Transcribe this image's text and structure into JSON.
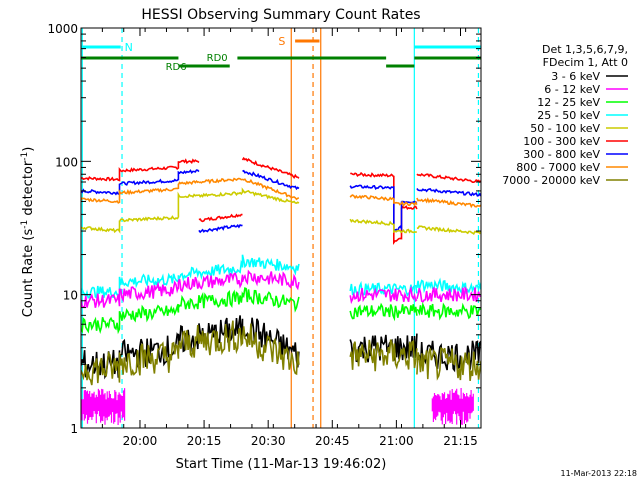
{
  "chart_data": {
    "type": "line",
    "title": "HESSI Observing Summary Count Rates",
    "xlabel": "Start Time (11-Mar-13 19:46:02)",
    "ylabel_main": "Count Rate (s",
    "ylabel_sup1": "-1",
    "ylabel_mid": " detector",
    "ylabel_sup2": "-1",
    "ylabel_end": ")",
    "timestamp": "11-Mar-2013 22:18",
    "yscale": "log",
    "ylim": [
      1,
      1000
    ],
    "xlim_minutes": [
      19.77,
      21.33
    ],
    "x_ticks": [
      {
        "label": "20:00",
        "v": 20.0
      },
      {
        "label": "20:15",
        "v": 20.25
      },
      {
        "label": "20:30",
        "v": 20.5
      },
      {
        "label": "20:45",
        "v": 20.75
      },
      {
        "label": "21:00",
        "v": 21.0
      },
      {
        "label": "21:15",
        "v": 21.25
      }
    ],
    "y_ticks": [
      {
        "label": "1",
        "v": 1
      },
      {
        "label": "10",
        "v": 10
      },
      {
        "label": "100",
        "v": 100
      },
      {
        "label": "1000",
        "v": 1000
      }
    ],
    "legend": {
      "header_line1": "Det 1,3,5,6,7,9,",
      "header_line2": "FDecim 1, Att 0",
      "entries": [
        {
          "label": "3 - 6 keV",
          "color": "#000000"
        },
        {
          "label": "6 - 12 keV",
          "color": "#ff00ff"
        },
        {
          "label": "12 - 25 keV",
          "color": "#00ff00"
        },
        {
          "label": "25 - 50 keV",
          "color": "#00ffff"
        },
        {
          "label": "50 - 100 keV",
          "color": "#cccc00"
        },
        {
          "label": "100 - 300 keV",
          "color": "#ff0000"
        },
        {
          "label": "300 - 800 keV",
          "color": "#0000ff"
        },
        {
          "label": "800 - 7000 keV",
          "color": "#ff8800"
        },
        {
          "label": "7000 - 20000 keV",
          "color": "#808000"
        }
      ]
    },
    "flags": {
      "N_label": "N",
      "N_color": "#00ffff",
      "S_label": "S",
      "S_color": "#ff7700",
      "RD0_label": "RD0",
      "RD6_label": "RD6",
      "RD_color": "#008000"
    },
    "series": [
      {
        "name": "100 - 300 keV",
        "color": "#ff0000",
        "segments": [
          {
            "x": [
              19.77,
              19.92,
              19.92,
              20.15,
              20.15,
              20.23
            ],
            "y": [
              75,
              73,
              85,
              90,
              100,
              100
            ]
          },
          {
            "x": [
              20.23,
              20.4
            ],
            "y": [
              36,
              40
            ]
          },
          {
            "x": [
              20.4,
              20.62
            ],
            "y": [
              105,
              75
            ]
          },
          {
            "x": [
              20.82,
              20.99,
              20.99,
              21.02,
              21.02,
              21.08
            ],
            "y": [
              80,
              78,
              25,
              27,
              45,
              45
            ]
          },
          {
            "x": [
              21.08,
              21.33
            ],
            "y": [
              80,
              70
            ]
          }
        ]
      },
      {
        "name": "300 - 800 keV",
        "color": "#0000ff",
        "segments": [
          {
            "x": [
              19.77,
              19.92,
              19.92,
              20.15,
              20.15,
              20.23
            ],
            "y": [
              60,
              58,
              68,
              72,
              82,
              85
            ]
          },
          {
            "x": [
              20.23,
              20.4
            ],
            "y": [
              30,
              33
            ]
          },
          {
            "x": [
              20.4,
              20.62
            ],
            "y": [
              85,
              62
            ]
          },
          {
            "x": [
              20.82,
              20.99,
              20.99,
              21.02,
              21.02,
              21.08
            ],
            "y": [
              65,
              63,
              30,
              32,
              50,
              50
            ]
          },
          {
            "x": [
              21.08,
              21.33
            ],
            "y": [
              62,
              56
            ]
          }
        ]
      },
      {
        "name": "800 - 7000 keV",
        "color": "#ff8800",
        "segments": [
          {
            "x": [
              19.77,
              19.92,
              19.92,
              20.15,
              20.15,
              20.23
            ],
            "y": [
              52,
              50,
              58,
              62,
              68,
              70
            ]
          },
          {
            "x": [
              20.23,
              20.4,
              20.4,
              20.62
            ],
            "y": [
              70,
              74,
              74,
              52
            ]
          },
          {
            "x": [
              20.82,
              20.99,
              20.99,
              21.08
            ],
            "y": [
              55,
              52,
              48,
              48
            ]
          },
          {
            "x": [
              21.08,
              21.33
            ],
            "y": [
              52,
              46
            ]
          }
        ]
      },
      {
        "name": "50 - 100 keV",
        "color": "#cccc00",
        "segments": [
          {
            "x": [
              19.77,
              19.92,
              19.92,
              20.15,
              20.15,
              20.23
            ],
            "y": [
              32,
              30,
              36,
              38,
              55,
              55
            ]
          },
          {
            "x": [
              20.23,
              20.4,
              20.4,
              20.62
            ],
            "y": [
              55,
              58,
              60,
              48
            ]
          },
          {
            "x": [
              20.82,
              20.99,
              20.99,
              21.08
            ],
            "y": [
              36,
              34,
              30,
              30
            ]
          },
          {
            "x": [
              21.08,
              21.33
            ],
            "y": [
              32,
              29
            ]
          }
        ]
      },
      {
        "name": "25 - 50 keV",
        "color": "#00ffff",
        "segments": [
          {
            "x": [
              19.77,
              19.92,
              19.92,
              20.15,
              20.15,
              20.4,
              20.4,
              20.62
            ],
            "y": [
              10.5,
              10.5,
              12.5,
              13,
              14,
              16,
              18,
              16
            ]
          },
          {
            "x": [
              20.82,
              21.08
            ],
            "y": [
              11,
              11
            ]
          },
          {
            "x": [
              21.08,
              21.33
            ],
            "y": [
              12,
              11
            ]
          }
        ]
      },
      {
        "name": "6 - 12 keV",
        "color": "#ff00ff",
        "segments": [
          {
            "x": [
              19.77,
              19.92,
              19.92,
              20.15,
              20.15,
              20.4,
              20.4,
              20.62
            ],
            "y": [
              9,
              9,
              10,
              11,
              12,
              13,
              14,
              12.5
            ]
          },
          {
            "x": [
              20.82,
              21.08
            ],
            "y": [
              10,
              10
            ]
          },
          {
            "x": [
              21.08,
              21.33
            ],
            "y": [
              10,
              10
            ]
          }
        ]
      },
      {
        "name": "12 - 25 keV",
        "color": "#00ff00",
        "segments": [
          {
            "x": [
              19.77,
              19.92,
              19.92,
              20.15,
              20.15,
              20.4,
              20.4,
              20.62
            ],
            "y": [
              6,
              6,
              7,
              7.5,
              8.5,
              9.5,
              10,
              8.5
            ]
          },
          {
            "x": [
              20.82,
              21.08
            ],
            "y": [
              7.5,
              7.5
            ]
          },
          {
            "x": [
              21.08,
              21.33
            ],
            "y": [
              7.5,
              7.5
            ]
          }
        ]
      },
      {
        "name": "3 - 6 keV",
        "color": "#000000",
        "segments": [
          {
            "x": [
              19.77,
              19.92,
              19.92,
              20.15,
              20.15,
              20.4,
              20.4,
              20.62
            ],
            "y": [
              3,
              3,
              3.5,
              4,
              4.5,
              5.5,
              6,
              3.5
            ]
          },
          {
            "x": [
              20.82,
              21.08
            ],
            "y": [
              4,
              4
            ]
          },
          {
            "x": [
              21.08,
              21.33
            ],
            "y": [
              3.5,
              3.5
            ]
          }
        ]
      },
      {
        "name": "7000 - 20000 keV",
        "color": "#808000",
        "segments": [
          {
            "x": [
              19.77,
              19.92,
              19.92,
              20.15,
              20.15,
              20.4,
              20.4,
              20.62
            ],
            "y": [
              2.8,
              2.8,
              3.2,
              3.5,
              4.2,
              5,
              5,
              3
            ]
          },
          {
            "x": [
              20.82,
              21.08
            ],
            "y": [
              3.5,
              3.5
            ]
          },
          {
            "x": [
              21.08,
              21.33
            ],
            "y": [
              3,
              3
            ]
          }
        ]
      }
    ]
  }
}
